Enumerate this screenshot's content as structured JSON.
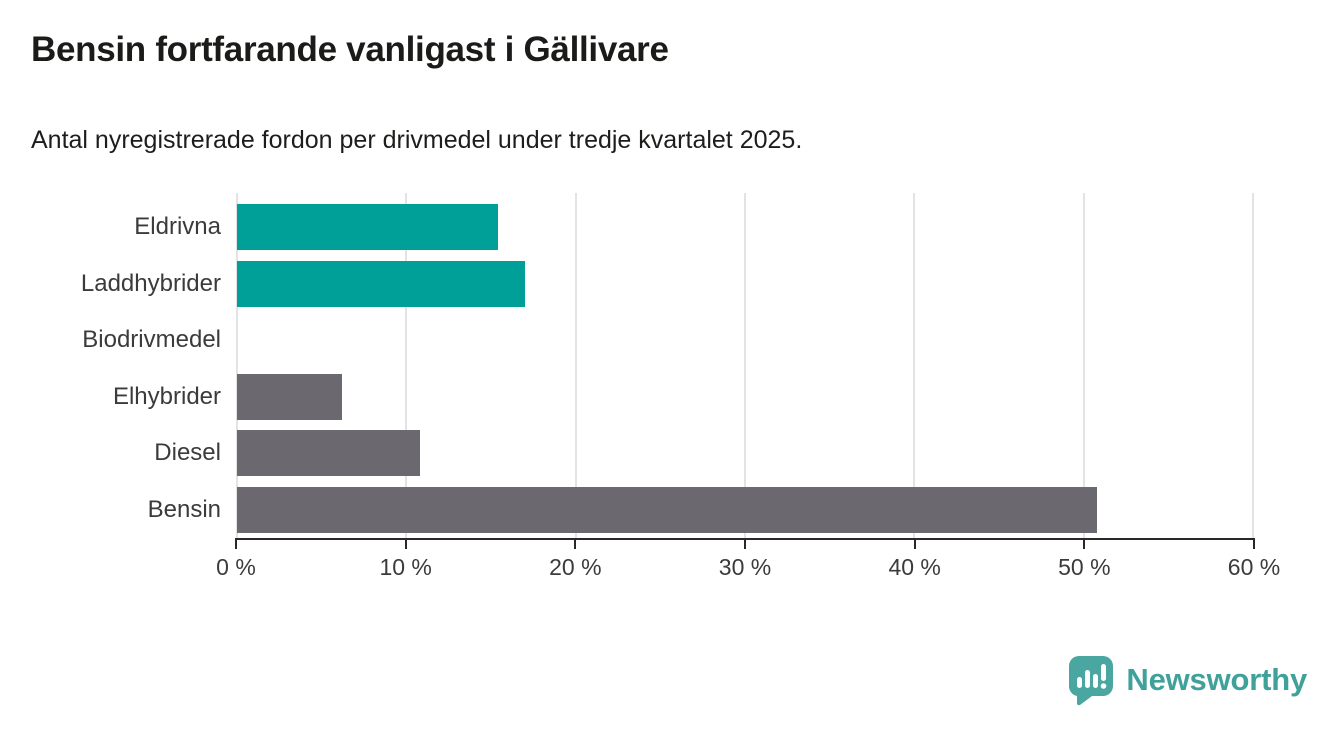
{
  "chart_data": {
    "type": "bar",
    "orientation": "horizontal",
    "title": "Bensin fortfarande vanligast i Gällivare",
    "subtitle": "Antal nyregistrerade fordon per drivmedel under tredje kvartalet 2025.",
    "categories": [
      "Eldrivna",
      "Laddhybrider",
      "Biodrivmedel",
      "Elhybrider",
      "Diesel",
      "Bensin"
    ],
    "values": [
      15.4,
      17.0,
      0,
      6.2,
      10.8,
      50.8
    ],
    "unit": "%",
    "xlim": [
      0,
      60
    ],
    "tick_labels": [
      "0 %",
      "10 %",
      "20 %",
      "30 %",
      "40 %",
      "50 %",
      "60 %"
    ],
    "bar_colors": [
      "#00a099",
      "#00a099",
      "#00a099",
      "#6b6870",
      "#6b6870",
      "#6b6870"
    ],
    "palette": {
      "teal": "#00a099",
      "gray": "#6b6870",
      "gridline": "#e3e3e3",
      "axis": "#282828"
    },
    "grid": "vertical",
    "legend": "none"
  },
  "logo": {
    "text": "Newsworthy",
    "icon": "newsworthy-speech-bubble-chart-icon",
    "color": "#3fa19a"
  }
}
